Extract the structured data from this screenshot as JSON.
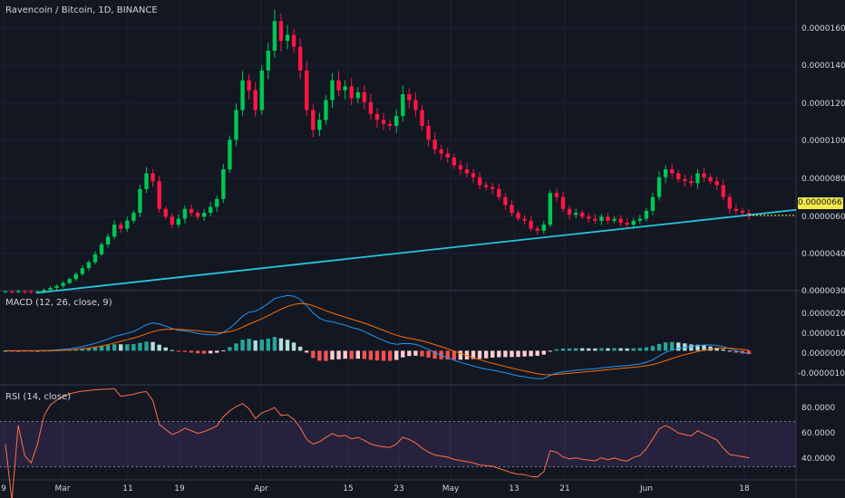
{
  "header": {
    "main_title": "Ravencoin / Bitcoin, 1D, BINANCE",
    "macd_title": "MACD (12, 26, close, 9)",
    "rsi_title": "RSI (14, close)"
  },
  "colors": {
    "up": "#26a69a",
    "up_bright": "#00c853",
    "down": "#ef5350",
    "down_bright": "#ff1744",
    "trendline": "#26c6da",
    "macd_line": "#2196f3",
    "signal_line": "#ff6d00",
    "rsi_line": "#ff7043",
    "rsi_band": "#7e57c2",
    "price_tag": "#f5e94a"
  },
  "current_price": "0.00000667",
  "price_axis": [
    "0.00001600",
    "0.00001400",
    "0.00001200",
    "0.00001000",
    "0.00000800",
    "0.00000600",
    "0.00000400",
    "0.00000300"
  ],
  "macd_axis": [
    "0.00000200",
    "0.00000100",
    "0.00000000",
    "-0.00000100"
  ],
  "rsi_axis": [
    "80.0000",
    "60.0000",
    "40.0000"
  ],
  "time_axis": [
    "9",
    "Mar",
    "11",
    "19",
    "Apr",
    "15",
    "23",
    "May",
    "13",
    "21",
    "Jun",
    "18"
  ],
  "chart_data": [
    {
      "type": "candlestick",
      "title": "Ravencoin / Bitcoin, 1D, BINANCE",
      "x_start": "2019-02-17",
      "x_end": "2019-06-17",
      "close": [
        2.82e-06,
        2.81e-06,
        2.83e-06,
        2.81e-06,
        2.8e-06,
        2.82e-06,
        2.9e-06,
        3e-06,
        3.1e-06,
        3.25e-06,
        3.45e-06,
        3.7e-06,
        4e-06,
        4.3e-06,
        4.7e-06,
        5.2e-06,
        5.6e-06,
        6.2e-06,
        6e-06,
        6.4e-06,
        6.8e-06,
        8e-06,
        8.8e-06,
        8.4e-06,
        7e-06,
        6.6e-06,
        6.2e-06,
        6.5e-06,
        7e-06,
        6.8e-06,
        6.6e-06,
        6.8e-06,
        7.1e-06,
        7.5e-06,
        9e-06,
        1.05e-05,
        1.2e-05,
        1.35e-05,
        1.3e-05,
        1.2e-05,
        1.4e-05,
        1.5e-05,
        1.65e-05,
        1.55e-05,
        1.58e-05,
        1.52e-05,
        1.4e-05,
        1.2e-05,
        1.1e-05,
        1.15e-05,
        1.25e-05,
        1.35e-05,
        1.3e-05,
        1.32e-05,
        1.26e-05,
        1.29e-05,
        1.24e-05,
        1.18e-05,
        1.15e-05,
        1.13e-05,
        1.12e-05,
        1.17e-05,
        1.28e-05,
        1.25e-05,
        1.2e-05,
        1.12e-05,
        1.05e-05,
        1e-05,
        9.8e-06,
        9.6e-06,
        9.2e-06,
        9e-06,
        8.8e-06,
        8.6e-06,
        8.2e-06,
        8.1e-06,
        8e-06,
        7.6e-06,
        7.2e-06,
        6.8e-06,
        6.5e-06,
        6.4e-06,
        6e-06,
        5.9e-06,
        6.2e-06,
        7.8e-06,
        7.6e-06,
        7e-06,
        6.7e-06,
        6.8e-06,
        6.6e-06,
        6.5e-06,
        6.4e-06,
        6.6e-06,
        6.4e-06,
        6.5e-06,
        6.3e-06,
        6.2e-06,
        6.4e-06,
        6.5e-06,
        6.9e-06,
        7.6e-06,
        8.6e-06,
        9e-06,
        8.8e-06,
        8.5e-06,
        8.4e-06,
        8.3e-06,
        8.8e-06,
        8.6e-06,
        8.4e-06,
        8.2e-06,
        7.6e-06,
        7e-06,
        6.9e-06,
        6.8e-06,
        6.67e-06
      ],
      "price_range": [
        3e-06,
        1.72e-05
      ],
      "trendline": {
        "start": [
          "2019-02-23",
          2.75e-06
        ],
        "end": [
          "2019-06-17",
          6.67e-06
        ]
      }
    },
    {
      "type": "bar",
      "title": "MACD (12, 26, close, 9)",
      "series": [
        {
          "name": "MACD",
          "kind": "line"
        },
        {
          "name": "Signal",
          "kind": "line"
        },
        {
          "name": "Histogram",
          "kind": "bar"
        }
      ],
      "ylim": [
        -1.5e-06,
        2.7e-06
      ]
    },
    {
      "type": "line",
      "title": "RSI (14, close)",
      "ylim": [
        20,
        100
      ],
      "bands": [
        30,
        70
      ]
    }
  ]
}
